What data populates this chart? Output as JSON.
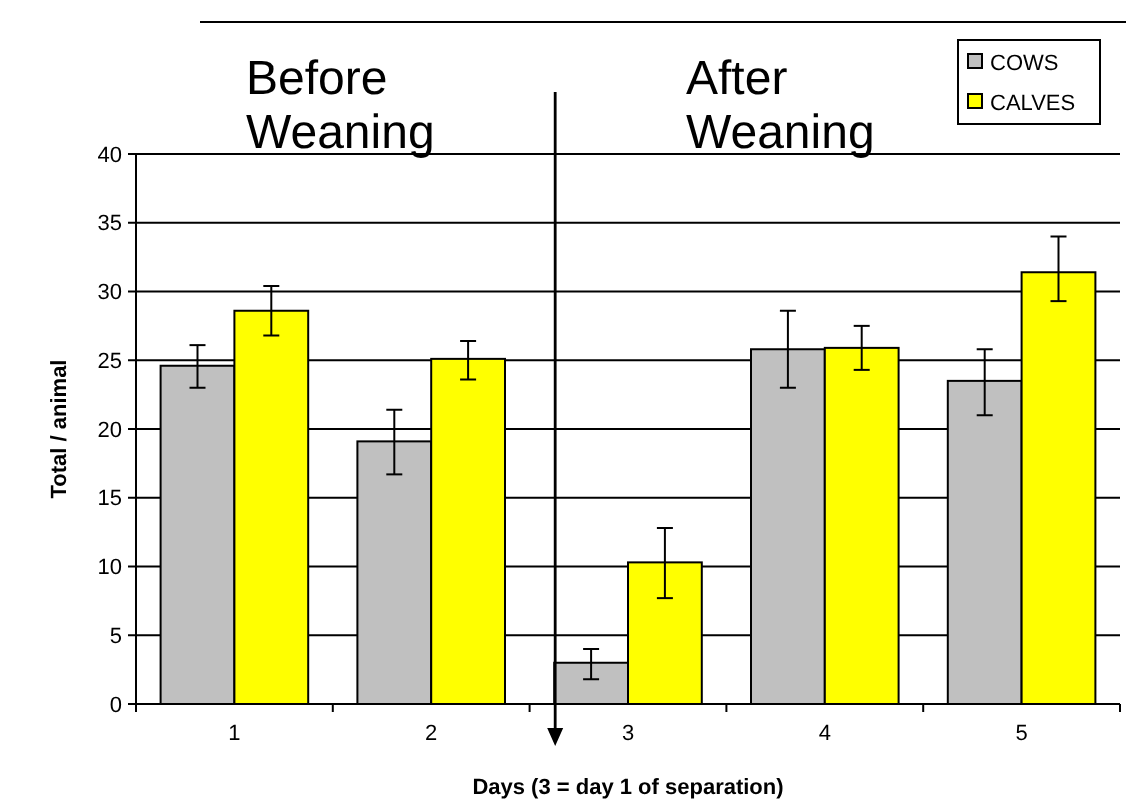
{
  "chart_data": {
    "type": "bar",
    "categories": [
      "1",
      "2",
      "3",
      "4",
      "5"
    ],
    "xlabel": "Days (3 = day 1 of separation)",
    "ylabel": "Total / animal",
    "series": [
      {
        "name": "COWS",
        "color": "#c0c0c0",
        "values": [
          24.6,
          19.1,
          3.0,
          25.8,
          23.5
        ],
        "errors": [
          [
            23.0,
            26.1
          ],
          [
            16.7,
            21.4
          ],
          [
            1.8,
            4.0
          ],
          [
            23.0,
            28.6
          ],
          [
            21.0,
            25.8
          ]
        ]
      },
      {
        "name": "CALVES",
        "color": "#ffff00",
        "values": [
          28.6,
          25.1,
          10.3,
          25.9,
          31.4
        ],
        "errors": [
          [
            26.8,
            30.4
          ],
          [
            23.6,
            26.4
          ],
          [
            7.7,
            12.8
          ],
          [
            24.3,
            27.5
          ],
          [
            29.3,
            34.0
          ]
        ]
      }
    ],
    "annotations": [
      "Before Weaning",
      "After Weaning"
    ],
    "ylim": [
      0,
      40
    ],
    "yticks": [
      0,
      5,
      10,
      15,
      20,
      25,
      30,
      35,
      40
    ],
    "grid": "y",
    "legend": "top right"
  }
}
